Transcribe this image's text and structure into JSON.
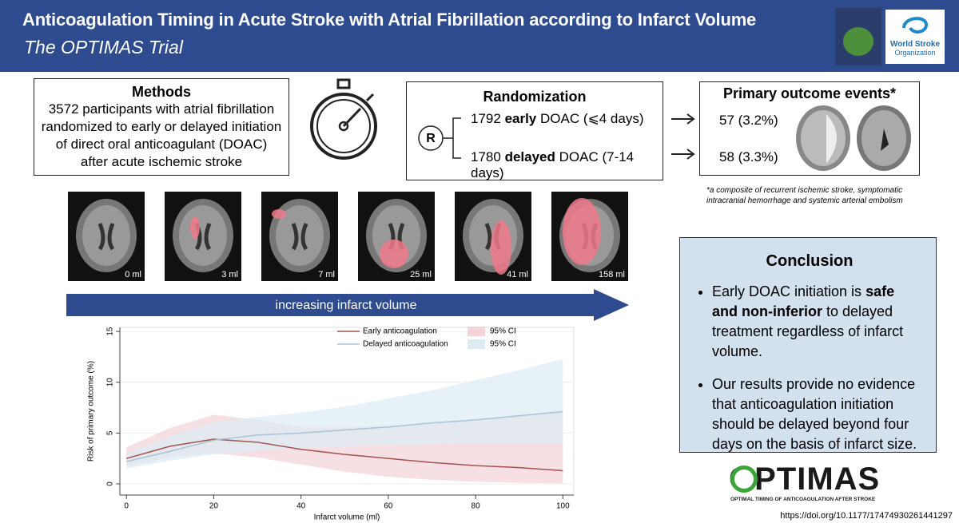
{
  "header": {
    "title": "Anticoagulation Timing in Acute Stroke with Atrial Fibrillation according to Infarct Volume",
    "subtitle": "The OPTIMAS Trial",
    "partner": [
      "World Stroke",
      "Organization"
    ]
  },
  "methods": {
    "title": "Methods",
    "text": "3572 participants with atrial fibrillation randomized to early or delayed initiation of direct oral anticoagulant (DOAC) after acute ischemic stroke"
  },
  "randomization": {
    "title": "Randomization",
    "symbol": "R",
    "arms": [
      {
        "count": "1792",
        "timing": "early",
        "rest": "DOAC (⩽4 days)"
      },
      {
        "count": "1780",
        "timing": "delayed",
        "rest": "DOAC (7-14 days)"
      }
    ]
  },
  "outcomes": {
    "title": "Primary outcome events*",
    "events": [
      "57 (3.2%)",
      "58 (3.3%)"
    ],
    "footnote": "*a composite of recurrent ischemic stroke, symptomatic intracranial hemorrhage and systemic arterial embolism"
  },
  "scans": {
    "labels": [
      "0 ml",
      "3 ml",
      "7 ml",
      "25 ml",
      "41 ml",
      "158 ml"
    ],
    "arrow": "increasing infarct volume"
  },
  "chart_data": {
    "type": "line",
    "xlabel": "Infarct volume (ml)",
    "ylabel": "Risk of primary outcome (%)",
    "x": [
      0,
      10,
      20,
      30,
      40,
      50,
      60,
      70,
      80,
      90,
      100
    ],
    "xlim": [
      -1.5,
      102.5
    ],
    "ylim": [
      -1.1,
      15.4
    ],
    "xticks": [
      0,
      20,
      40,
      60,
      80,
      100
    ],
    "yticks": [
      0,
      5,
      10,
      15
    ],
    "grid": true,
    "series": [
      {
        "name": "Early anticoagulation",
        "color": "#a4514f",
        "values": [
          2.5,
          3.7,
          4.4,
          4.1,
          3.4,
          2.9,
          2.5,
          2.1,
          1.8,
          1.6,
          1.3
        ],
        "ci_name": "95% CI",
        "ci_color": "#f4d3d9",
        "ci_lower": [
          1.7,
          2.6,
          3.0,
          2.6,
          1.9,
          1.2,
          0.7,
          0.4,
          0.2,
          0.1,
          0.05
        ],
        "ci_upper": [
          3.6,
          5.5,
          6.8,
          6.3,
          5.6,
          5.6,
          5.7,
          6.0,
          6.3,
          6.8,
          7.3
        ]
      },
      {
        "name": "Delayed anticoagulation",
        "color": "#a9c4d6",
        "values": [
          2.2,
          3.2,
          4.3,
          4.8,
          5.0,
          5.3,
          5.6,
          6.0,
          6.3,
          6.7,
          7.1
        ],
        "ci_name": "95% CI",
        "ci_color": "#dcecf3",
        "ci_lower": [
          1.5,
          2.3,
          2.9,
          3.3,
          3.5,
          3.7,
          3.8,
          3.9,
          4.0,
          4.0,
          4.0
        ],
        "ci_upper": [
          3.0,
          4.7,
          6.1,
          6.6,
          7.0,
          7.6,
          8.4,
          9.2,
          10.2,
          11.2,
          12.3
        ]
      }
    ]
  },
  "conclusion": {
    "title": "Conclusion",
    "bullets": [
      [
        "Early DOAC initiation is ",
        "safe and non-inferior",
        " to delayed treatment regardless of infarct volume."
      ],
      [
        "Our results provide no evidence that anticoagulation initiation should be delayed beyond four days on the basis of infarct size."
      ]
    ]
  },
  "logo": {
    "name": "OPTIMAS",
    "tagline": "OPTIMAL TIMING OF ANTICOAGULATION AFTER STROKE"
  },
  "doi": "https://doi.org/10.1177/17474930261441297"
}
